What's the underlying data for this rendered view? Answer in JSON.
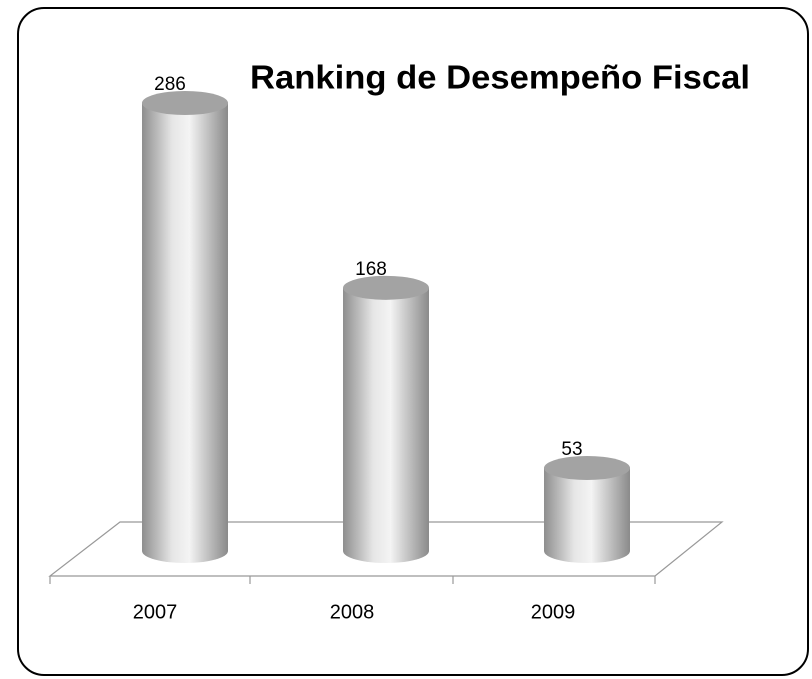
{
  "chart_data": {
    "type": "bar",
    "title": "Ranking de Desempeño Fiscal",
    "categories": [
      "2007",
      "2008",
      "2009"
    ],
    "values": [
      286,
      168,
      53
    ]
  }
}
